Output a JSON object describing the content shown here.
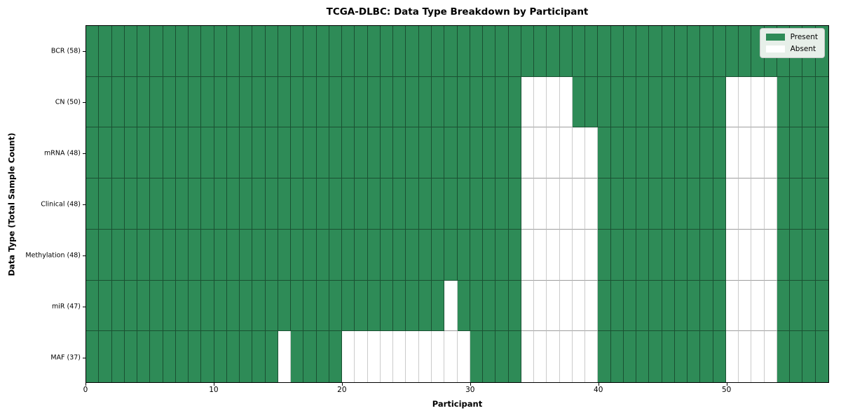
{
  "figure": {
    "title": "TCGA-DLBC: Data Type Breakdown by Participant",
    "xlabel": "Participant",
    "ylabel": "Data Type (Total Sample Count)"
  },
  "legend": {
    "items": [
      {
        "label": "Present",
        "color": "#2e8b57"
      },
      {
        "label": "Absent",
        "color": "#ffffff"
      }
    ]
  },
  "chart_data": {
    "type": "heatmap",
    "title": "TCGA-DLBC: Data Type Breakdown by Participant",
    "xlabel": "Participant",
    "ylabel": "Data Type (Total Sample Count)",
    "x_ticks": [
      0,
      10,
      20,
      30,
      40,
      50
    ],
    "x_range": [
      0,
      58
    ],
    "n_participants": 58,
    "legend_position": "upper right",
    "colors": {
      "present": "#2e8b57",
      "absent": "#ffffff"
    },
    "rows": [
      {
        "label": "BCR (58)",
        "data_type": "BCR",
        "total": 58,
        "absent_participants": []
      },
      {
        "label": "CN (50)",
        "data_type": "CN",
        "total": 50,
        "absent_participants": [
          34,
          35,
          36,
          37,
          50,
          51,
          52,
          53
        ]
      },
      {
        "label": "mRNA (48)",
        "data_type": "mRNA",
        "total": 48,
        "absent_participants": [
          34,
          35,
          36,
          37,
          38,
          39,
          50,
          51,
          52,
          53
        ]
      },
      {
        "label": "Clinical (48)",
        "data_type": "Clinical",
        "total": 48,
        "absent_participants": [
          34,
          35,
          36,
          37,
          38,
          39,
          50,
          51,
          52,
          53
        ]
      },
      {
        "label": "Methylation (48)",
        "data_type": "Methylation",
        "total": 48,
        "absent_participants": [
          34,
          35,
          36,
          37,
          38,
          39,
          50,
          51,
          52,
          53
        ]
      },
      {
        "label": "miR (47)",
        "data_type": "miR",
        "total": 47,
        "absent_participants": [
          28,
          34,
          35,
          36,
          37,
          38,
          39,
          50,
          51,
          52,
          53
        ]
      },
      {
        "label": "MAF (37)",
        "data_type": "MAF",
        "total": 37,
        "absent_participants": [
          15,
          20,
          21,
          22,
          23,
          24,
          25,
          26,
          27,
          28,
          29,
          34,
          35,
          36,
          37,
          38,
          39,
          50,
          51,
          52,
          53
        ]
      }
    ]
  }
}
